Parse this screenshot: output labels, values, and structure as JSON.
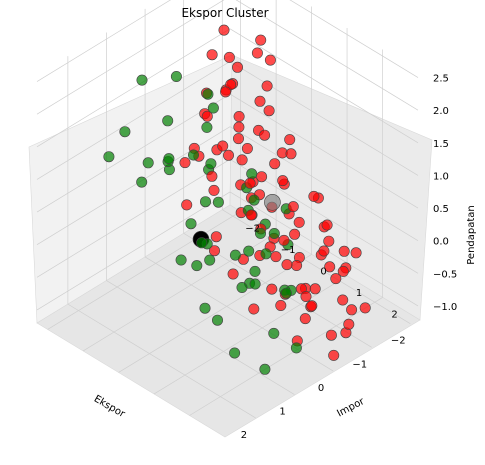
{
  "chart_data": {
    "type": "scatter",
    "projection": "3d",
    "title": "Ekspor Cluster",
    "xlabel": "Ekspor",
    "ylabel": "Impor",
    "zlabel": "Pendapatan",
    "xlim": [
      -2.2,
      2.8
    ],
    "ylim": [
      -2.3,
      3.0
    ],
    "zlim": [
      -1.2,
      2.6
    ],
    "x_ticks": [
      "2",
      "1",
      "0",
      "−1",
      "−2"
    ],
    "y_ticks": [
      "−2",
      "−1",
      "0",
      "1",
      "2"
    ],
    "z_ticks": [
      "2.5",
      "2.0",
      "1.5",
      "1.0",
      "0.5",
      "0.0",
      "−0.5",
      "−1.0"
    ],
    "grid": true,
    "colors": {
      "cluster_green": "#008000",
      "cluster_red": "#ff0000",
      "centroid_black": "#000000",
      "centroid_gray": "#808080"
    },
    "series": [
      {
        "color": "#008000",
        "points": [
          [
            2.6,
            1.2,
            2.4
          ],
          [
            2.5,
            -0.6,
            1.8
          ],
          [
            2.4,
            0.4,
            2.0
          ],
          [
            2.3,
            1.8,
            1.2
          ],
          [
            2.1,
            1.0,
            0.6
          ],
          [
            1.9,
            -0.8,
            1.9
          ],
          [
            1.7,
            0.2,
            1.7
          ],
          [
            1.5,
            1.4,
            1.4
          ],
          [
            1.3,
            -0.2,
            1.3
          ],
          [
            1.1,
            0.6,
            1.0
          ],
          [
            0.9,
            1.6,
            0.5
          ],
          [
            0.7,
            -0.9,
            1.6
          ],
          [
            0.5,
            0.1,
            1.2
          ],
          [
            0.3,
            1.1,
            0.9
          ],
          [
            0.1,
            -0.4,
            0.8
          ],
          [
            -0.1,
            0.5,
            0.4
          ],
          [
            -0.3,
            1.4,
            0.1
          ],
          [
            -0.5,
            -1.1,
            1.0
          ],
          [
            -0.7,
            -0.2,
            0.3
          ],
          [
            -0.9,
            0.7,
            0.2
          ],
          [
            1.8,
            1.7,
            -0.2
          ],
          [
            1.6,
            0.9,
            0.3
          ],
          [
            1.2,
            0.3,
            0.6
          ],
          [
            0.6,
            0.9,
            0.1
          ],
          [
            0.2,
            1.9,
            -0.3
          ],
          [
            -0.2,
            1.6,
            -0.5
          ],
          [
            -0.6,
            0.3,
            -0.2
          ],
          [
            0.8,
            2.2,
            -0.6
          ],
          [
            2.0,
            2.4,
            -0.4
          ],
          [
            1.4,
            2.6,
            -0.8
          ],
          [
            -1.0,
            0.0,
            -0.3
          ],
          [
            -0.4,
            1.2,
            -0.7
          ],
          [
            0.0,
            0.8,
            -0.4
          ],
          [
            0.4,
            2.4,
            -0.9
          ],
          [
            -1.2,
            -0.6,
            0.2
          ],
          [
            -0.8,
            -1.4,
            1.3
          ],
          [
            1.0,
            -1.3,
            2.2
          ],
          [
            0.2,
            -1.2,
            2.0
          ],
          [
            -0.3,
            -0.7,
            1.5
          ],
          [
            2.2,
            0.0,
            1.5
          ],
          [
            1.7,
            1.3,
            0.8
          ],
          [
            0.9,
            0.5,
            0.0
          ],
          [
            0.6,
            1.3,
            -0.2
          ],
          [
            -0.1,
            1.0,
            -0.1
          ],
          [
            -0.5,
            0.8,
            0.0
          ],
          [
            1.1,
            2.0,
            0.2
          ],
          [
            0.4,
            -0.5,
            1.1
          ],
          [
            2.4,
            2.0,
            0.3
          ],
          [
            1.9,
            2.5,
            0.6
          ]
        ]
      },
      {
        "color": "#ff0000",
        "points": [
          [
            -1.8,
            -2.0,
            2.3
          ],
          [
            -1.4,
            -1.6,
            2.0
          ],
          [
            -1.9,
            -1.2,
            1.6
          ],
          [
            -1.2,
            -1.0,
            1.7
          ],
          [
            -1.5,
            -0.4,
            1.9
          ],
          [
            -2.0,
            -2.1,
            1.2
          ],
          [
            -1.6,
            -0.8,
            1.1
          ],
          [
            -1.1,
            -0.3,
            1.0
          ],
          [
            -0.8,
            0.2,
            1.2
          ],
          [
            -1.3,
            0.4,
            0.8
          ],
          [
            -1.7,
            -1.5,
            0.6
          ],
          [
            -1.0,
            -1.2,
            0.5
          ],
          [
            -0.6,
            -0.6,
            0.7
          ],
          [
            -0.3,
            0.6,
            0.6
          ],
          [
            -1.9,
            -0.5,
            0.3
          ],
          [
            -1.4,
            0.1,
            0.2
          ],
          [
            -0.9,
            0.9,
            0.3
          ],
          [
            -0.5,
            1.5,
            0.4
          ],
          [
            -2.1,
            -1.7,
            -0.1
          ],
          [
            -1.6,
            -1.0,
            -0.2
          ],
          [
            -1.1,
            -0.5,
            -0.1
          ],
          [
            -0.7,
            0.2,
            -0.2
          ],
          [
            -0.3,
            0.9,
            -0.1
          ],
          [
            0.0,
            1.7,
            0.0
          ],
          [
            -1.8,
            -0.2,
            -0.5
          ],
          [
            -1.3,
            0.5,
            -0.4
          ],
          [
            -0.8,
            1.1,
            -0.5
          ],
          [
            -0.4,
            1.8,
            -0.6
          ],
          [
            -2.0,
            -0.9,
            -0.7
          ],
          [
            -1.5,
            -0.3,
            -0.8
          ],
          [
            -1.0,
            0.3,
            -0.7
          ],
          [
            -0.6,
            1.0,
            -0.9
          ],
          [
            -0.2,
            2.0,
            -0.8
          ],
          [
            -1.7,
            0.2,
            -1.0
          ],
          [
            -1.2,
            0.8,
            -1.1
          ],
          [
            -0.8,
            1.5,
            -1.0
          ],
          [
            -2.1,
            -1.3,
            -0.4
          ],
          [
            -1.4,
            -1.8,
            0.1
          ],
          [
            -0.9,
            -1.6,
            0.9
          ],
          [
            -0.5,
            -0.9,
            0.1
          ],
          [
            -0.1,
            -0.4,
            -0.3
          ],
          [
            0.2,
            0.4,
            -0.5
          ],
          [
            0.4,
            1.2,
            -0.7
          ],
          [
            -1.9,
            0.6,
            -0.9
          ],
          [
            -1.1,
            1.3,
            -0.9
          ],
          [
            -0.6,
            2.3,
            -1.1
          ],
          [
            -1.6,
            1.0,
            -0.6
          ],
          [
            -2.0,
            -0.4,
            0.5
          ],
          [
            -1.3,
            -1.3,
            1.3
          ],
          [
            -0.8,
            -0.9,
            1.5
          ],
          [
            -0.4,
            0.0,
            0.9
          ],
          [
            0.1,
            0.8,
            0.5
          ],
          [
            -1.5,
            -2.2,
            0.8
          ],
          [
            -1.0,
            -2.0,
            0.2
          ],
          [
            -0.3,
            -1.5,
            0.4
          ],
          [
            0.3,
            -0.8,
            0.2
          ],
          [
            0.5,
            0.2,
            -0.1
          ],
          [
            -1.7,
            0.9,
            -0.3
          ],
          [
            -1.2,
            1.6,
            -0.5
          ],
          [
            -0.7,
            2.6,
            -1.0
          ],
          [
            -0.2,
            2.8,
            -1.1
          ],
          [
            -1.8,
            1.4,
            -0.8
          ],
          [
            -2.1,
            0.3,
            -0.2
          ],
          [
            -1.4,
            2.0,
            -1.1
          ],
          [
            -0.9,
            0.6,
            0.6
          ],
          [
            -0.5,
            -0.2,
            1.3
          ],
          [
            -0.1,
            0.3,
            0.3
          ],
          [
            0.3,
            1.6,
            -0.3
          ],
          [
            -1.6,
            -0.6,
            1.4
          ],
          [
            -1.1,
            -0.8,
            0.0
          ],
          [
            -0.7,
            -0.1,
            0.4
          ],
          [
            -0.4,
            0.5,
            -0.4
          ],
          [
            -2.0,
            0.9,
            -1.2
          ],
          [
            -1.3,
            1.9,
            -0.2
          ],
          [
            -0.8,
            2.4,
            -0.6
          ],
          [
            -0.3,
            1.2,
            -0.9
          ],
          [
            -1.9,
            -1.9,
            0.9
          ],
          [
            -1.5,
            -1.3,
            0.4
          ],
          [
            -1.0,
            -1.5,
            1.8
          ],
          [
            -0.6,
            -1.2,
            1.1
          ],
          [
            -0.2,
            -1.0,
            0.7
          ],
          [
            0.2,
            -0.2,
            0.8
          ],
          [
            -1.7,
            1.8,
            -0.4
          ],
          [
            -1.2,
            2.6,
            -0.8
          ],
          [
            -0.9,
            1.9,
            0.1
          ],
          [
            0.0,
            2.4,
            -0.4
          ],
          [
            -1.4,
            0.7,
            -1.2
          ],
          [
            -2.1,
            -2.3,
            0.6
          ],
          [
            -1.8,
            -1.0,
            1.9
          ],
          [
            -1.1,
            0.0,
            1.4
          ],
          [
            -0.6,
            0.7,
            1.0
          ],
          [
            -0.2,
            1.4,
            0.2
          ],
          [
            -1.5,
            1.2,
            -0.1
          ],
          [
            -1.0,
            2.2,
            -0.3
          ],
          [
            -0.5,
            2.9,
            -0.7
          ],
          [
            0.1,
            2.1,
            -1.0
          ],
          [
            -1.8,
            0.5,
            0.0
          ],
          [
            -1.3,
            -0.7,
            -0.5
          ],
          [
            -0.8,
            -0.4,
            -0.9
          ]
        ]
      },
      {
        "color": "#000000",
        "centroid": true,
        "points": [
          [
            1.4,
            0.8,
            0.6
          ]
        ]
      },
      {
        "color": "#808080",
        "centroid": true,
        "points": [
          [
            -1.0,
            0.2,
            0.1
          ]
        ]
      }
    ]
  }
}
